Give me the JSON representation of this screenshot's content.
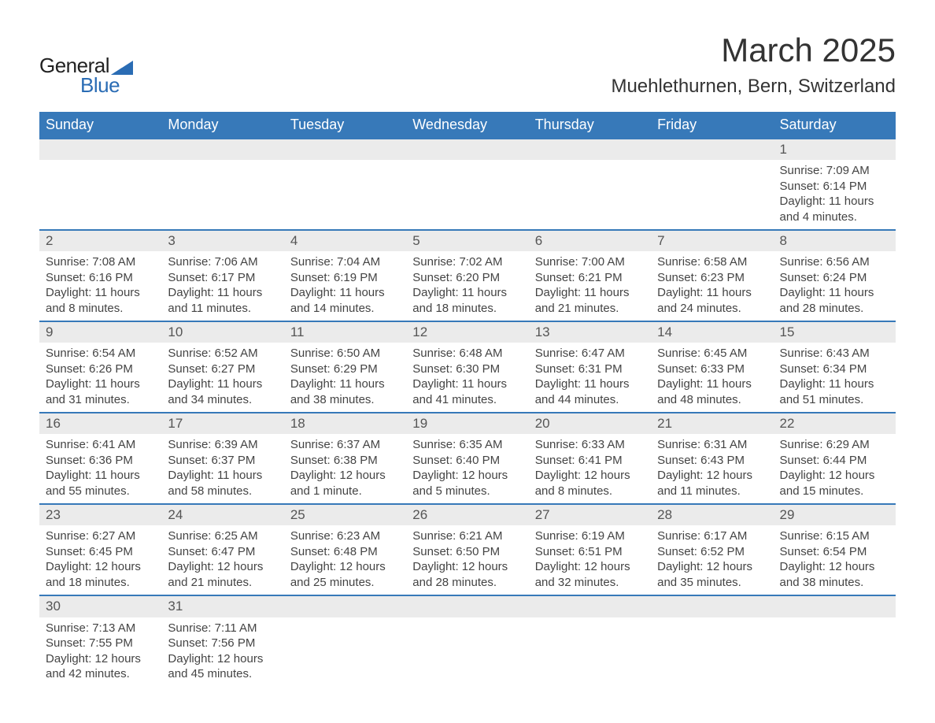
{
  "logo": {
    "text1": "General",
    "text2": "Blue",
    "shape_color": "#2a6cb4"
  },
  "title": "March 2025",
  "location": "Muehlethurnen, Bern, Switzerland",
  "colors": {
    "header_bg": "#3779b9",
    "header_text": "#ffffff",
    "daynum_bg": "#ebebeb",
    "row_border": "#3779b9",
    "body_text": "#3a3a3a"
  },
  "weekdays": [
    "Sunday",
    "Monday",
    "Tuesday",
    "Wednesday",
    "Thursday",
    "Friday",
    "Saturday"
  ],
  "weeks": [
    [
      null,
      null,
      null,
      null,
      null,
      null,
      {
        "n": "1",
        "sr": "Sunrise: 7:09 AM",
        "ss": "Sunset: 6:14 PM",
        "d1": "Daylight: 11 hours",
        "d2": "and 4 minutes."
      }
    ],
    [
      {
        "n": "2",
        "sr": "Sunrise: 7:08 AM",
        "ss": "Sunset: 6:16 PM",
        "d1": "Daylight: 11 hours",
        "d2": "and 8 minutes."
      },
      {
        "n": "3",
        "sr": "Sunrise: 7:06 AM",
        "ss": "Sunset: 6:17 PM",
        "d1": "Daylight: 11 hours",
        "d2": "and 11 minutes."
      },
      {
        "n": "4",
        "sr": "Sunrise: 7:04 AM",
        "ss": "Sunset: 6:19 PM",
        "d1": "Daylight: 11 hours",
        "d2": "and 14 minutes."
      },
      {
        "n": "5",
        "sr": "Sunrise: 7:02 AM",
        "ss": "Sunset: 6:20 PM",
        "d1": "Daylight: 11 hours",
        "d2": "and 18 minutes."
      },
      {
        "n": "6",
        "sr": "Sunrise: 7:00 AM",
        "ss": "Sunset: 6:21 PM",
        "d1": "Daylight: 11 hours",
        "d2": "and 21 minutes."
      },
      {
        "n": "7",
        "sr": "Sunrise: 6:58 AM",
        "ss": "Sunset: 6:23 PM",
        "d1": "Daylight: 11 hours",
        "d2": "and 24 minutes."
      },
      {
        "n": "8",
        "sr": "Sunrise: 6:56 AM",
        "ss": "Sunset: 6:24 PM",
        "d1": "Daylight: 11 hours",
        "d2": "and 28 minutes."
      }
    ],
    [
      {
        "n": "9",
        "sr": "Sunrise: 6:54 AM",
        "ss": "Sunset: 6:26 PM",
        "d1": "Daylight: 11 hours",
        "d2": "and 31 minutes."
      },
      {
        "n": "10",
        "sr": "Sunrise: 6:52 AM",
        "ss": "Sunset: 6:27 PM",
        "d1": "Daylight: 11 hours",
        "d2": "and 34 minutes."
      },
      {
        "n": "11",
        "sr": "Sunrise: 6:50 AM",
        "ss": "Sunset: 6:29 PM",
        "d1": "Daylight: 11 hours",
        "d2": "and 38 minutes."
      },
      {
        "n": "12",
        "sr": "Sunrise: 6:48 AM",
        "ss": "Sunset: 6:30 PM",
        "d1": "Daylight: 11 hours",
        "d2": "and 41 minutes."
      },
      {
        "n": "13",
        "sr": "Sunrise: 6:47 AM",
        "ss": "Sunset: 6:31 PM",
        "d1": "Daylight: 11 hours",
        "d2": "and 44 minutes."
      },
      {
        "n": "14",
        "sr": "Sunrise: 6:45 AM",
        "ss": "Sunset: 6:33 PM",
        "d1": "Daylight: 11 hours",
        "d2": "and 48 minutes."
      },
      {
        "n": "15",
        "sr": "Sunrise: 6:43 AM",
        "ss": "Sunset: 6:34 PM",
        "d1": "Daylight: 11 hours",
        "d2": "and 51 minutes."
      }
    ],
    [
      {
        "n": "16",
        "sr": "Sunrise: 6:41 AM",
        "ss": "Sunset: 6:36 PM",
        "d1": "Daylight: 11 hours",
        "d2": "and 55 minutes."
      },
      {
        "n": "17",
        "sr": "Sunrise: 6:39 AM",
        "ss": "Sunset: 6:37 PM",
        "d1": "Daylight: 11 hours",
        "d2": "and 58 minutes."
      },
      {
        "n": "18",
        "sr": "Sunrise: 6:37 AM",
        "ss": "Sunset: 6:38 PM",
        "d1": "Daylight: 12 hours",
        "d2": "and 1 minute."
      },
      {
        "n": "19",
        "sr": "Sunrise: 6:35 AM",
        "ss": "Sunset: 6:40 PM",
        "d1": "Daylight: 12 hours",
        "d2": "and 5 minutes."
      },
      {
        "n": "20",
        "sr": "Sunrise: 6:33 AM",
        "ss": "Sunset: 6:41 PM",
        "d1": "Daylight: 12 hours",
        "d2": "and 8 minutes."
      },
      {
        "n": "21",
        "sr": "Sunrise: 6:31 AM",
        "ss": "Sunset: 6:43 PM",
        "d1": "Daylight: 12 hours",
        "d2": "and 11 minutes."
      },
      {
        "n": "22",
        "sr": "Sunrise: 6:29 AM",
        "ss": "Sunset: 6:44 PM",
        "d1": "Daylight: 12 hours",
        "d2": "and 15 minutes."
      }
    ],
    [
      {
        "n": "23",
        "sr": "Sunrise: 6:27 AM",
        "ss": "Sunset: 6:45 PM",
        "d1": "Daylight: 12 hours",
        "d2": "and 18 minutes."
      },
      {
        "n": "24",
        "sr": "Sunrise: 6:25 AM",
        "ss": "Sunset: 6:47 PM",
        "d1": "Daylight: 12 hours",
        "d2": "and 21 minutes."
      },
      {
        "n": "25",
        "sr": "Sunrise: 6:23 AM",
        "ss": "Sunset: 6:48 PM",
        "d1": "Daylight: 12 hours",
        "d2": "and 25 minutes."
      },
      {
        "n": "26",
        "sr": "Sunrise: 6:21 AM",
        "ss": "Sunset: 6:50 PM",
        "d1": "Daylight: 12 hours",
        "d2": "and 28 minutes."
      },
      {
        "n": "27",
        "sr": "Sunrise: 6:19 AM",
        "ss": "Sunset: 6:51 PM",
        "d1": "Daylight: 12 hours",
        "d2": "and 32 minutes."
      },
      {
        "n": "28",
        "sr": "Sunrise: 6:17 AM",
        "ss": "Sunset: 6:52 PM",
        "d1": "Daylight: 12 hours",
        "d2": "and 35 minutes."
      },
      {
        "n": "29",
        "sr": "Sunrise: 6:15 AM",
        "ss": "Sunset: 6:54 PM",
        "d1": "Daylight: 12 hours",
        "d2": "and 38 minutes."
      }
    ],
    [
      {
        "n": "30",
        "sr": "Sunrise: 7:13 AM",
        "ss": "Sunset: 7:55 PM",
        "d1": "Daylight: 12 hours",
        "d2": "and 42 minutes."
      },
      {
        "n": "31",
        "sr": "Sunrise: 7:11 AM",
        "ss": "Sunset: 7:56 PM",
        "d1": "Daylight: 12 hours",
        "d2": "and 45 minutes."
      },
      null,
      null,
      null,
      null,
      null
    ]
  ]
}
